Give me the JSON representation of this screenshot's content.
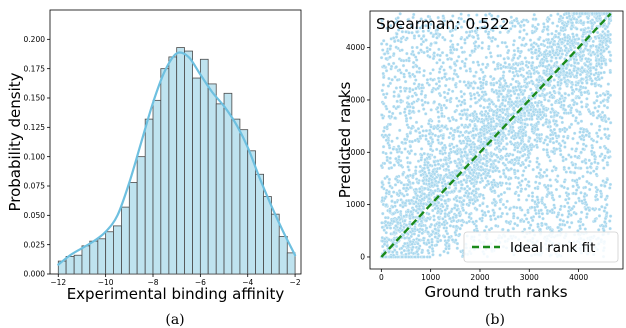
{
  "chart_data": [
    {
      "type": "bar",
      "subtype": "histogram-with-kde",
      "xlabel": "Experimental binding affinity",
      "ylabel": "Probability density",
      "caption": "(a)",
      "xlim": [
        -12.35,
        -1.75
      ],
      "ylim": [
        0,
        0.225
      ],
      "xticks": [
        -12,
        -10,
        -8,
        -6,
        -4,
        -2
      ],
      "yticks": [
        0.0,
        0.025,
        0.05,
        0.075,
        0.1,
        0.125,
        0.15,
        0.175,
        0.2
      ],
      "ytick_labels": [
        "0.000",
        "0.025",
        "0.050",
        "0.075",
        "0.100",
        "0.125",
        "0.150",
        "0.175",
        "0.200"
      ],
      "bin_edges": [
        -12.0,
        -11.67,
        -11.33,
        -11.0,
        -10.67,
        -10.33,
        -10.0,
        -9.67,
        -9.33,
        -9.0,
        -8.67,
        -8.33,
        -8.0,
        -7.67,
        -7.33,
        -7.0,
        -6.67,
        -6.33,
        -6.0,
        -5.67,
        -5.33,
        -5.0,
        -4.67,
        -4.33,
        -4.0,
        -3.67,
        -3.33,
        -3.0,
        -2.67,
        -2.33,
        -2.0
      ],
      "densities": [
        0.011,
        0.015,
        0.016,
        0.024,
        0.028,
        0.03,
        0.036,
        0.041,
        0.057,
        0.078,
        0.1,
        0.132,
        0.148,
        0.175,
        0.185,
        0.193,
        0.19,
        0.167,
        0.183,
        0.162,
        0.145,
        0.154,
        0.132,
        0.123,
        0.105,
        0.085,
        0.066,
        0.051,
        0.032,
        0.018
      ],
      "kde": {
        "x": [
          -12.0,
          -11.5,
          -11.0,
          -10.5,
          -10.0,
          -9.5,
          -9.0,
          -8.5,
          -8.0,
          -7.5,
          -7.0,
          -6.5,
          -6.0,
          -5.5,
          -5.0,
          -4.5,
          -4.0,
          -3.5,
          -3.0,
          -2.5,
          -2.0
        ],
        "y": [
          0.008,
          0.016,
          0.022,
          0.028,
          0.036,
          0.05,
          0.078,
          0.112,
          0.146,
          0.173,
          0.188,
          0.185,
          0.17,
          0.155,
          0.143,
          0.128,
          0.108,
          0.082,
          0.058,
          0.036,
          0.016
        ]
      },
      "colors": {
        "bar_fill": "#bfe3ef",
        "bar_edge": "#4a4a4a",
        "kde": "#6ec0e0"
      }
    },
    {
      "type": "scatter",
      "xlabel": "Ground truth ranks",
      "ylabel": "Predicted ranks",
      "caption": "(b)",
      "annotation": "Spearman: 0.522",
      "xlim": [
        -230,
        4900
      ],
      "ylim": [
        -230,
        4700
      ],
      "xticks": [
        0,
        1000,
        2000,
        3000,
        4000
      ],
      "yticks": [
        0,
        1000,
        2000,
        3000,
        4000
      ],
      "n_points": 4650,
      "spearman": 0.522,
      "series": [
        {
          "name": "Ideal rank fit",
          "style": "dashed-line",
          "x": [
            0,
            4650
          ],
          "y": [
            0,
            4650
          ]
        }
      ],
      "legend": {
        "entries": [
          "Ideal rank fit"
        ],
        "placement": "lower-right"
      },
      "colors": {
        "points": "#a9d8ee",
        "point_edge": "#ffffff",
        "ideal": "#1a8a1a"
      }
    }
  ]
}
